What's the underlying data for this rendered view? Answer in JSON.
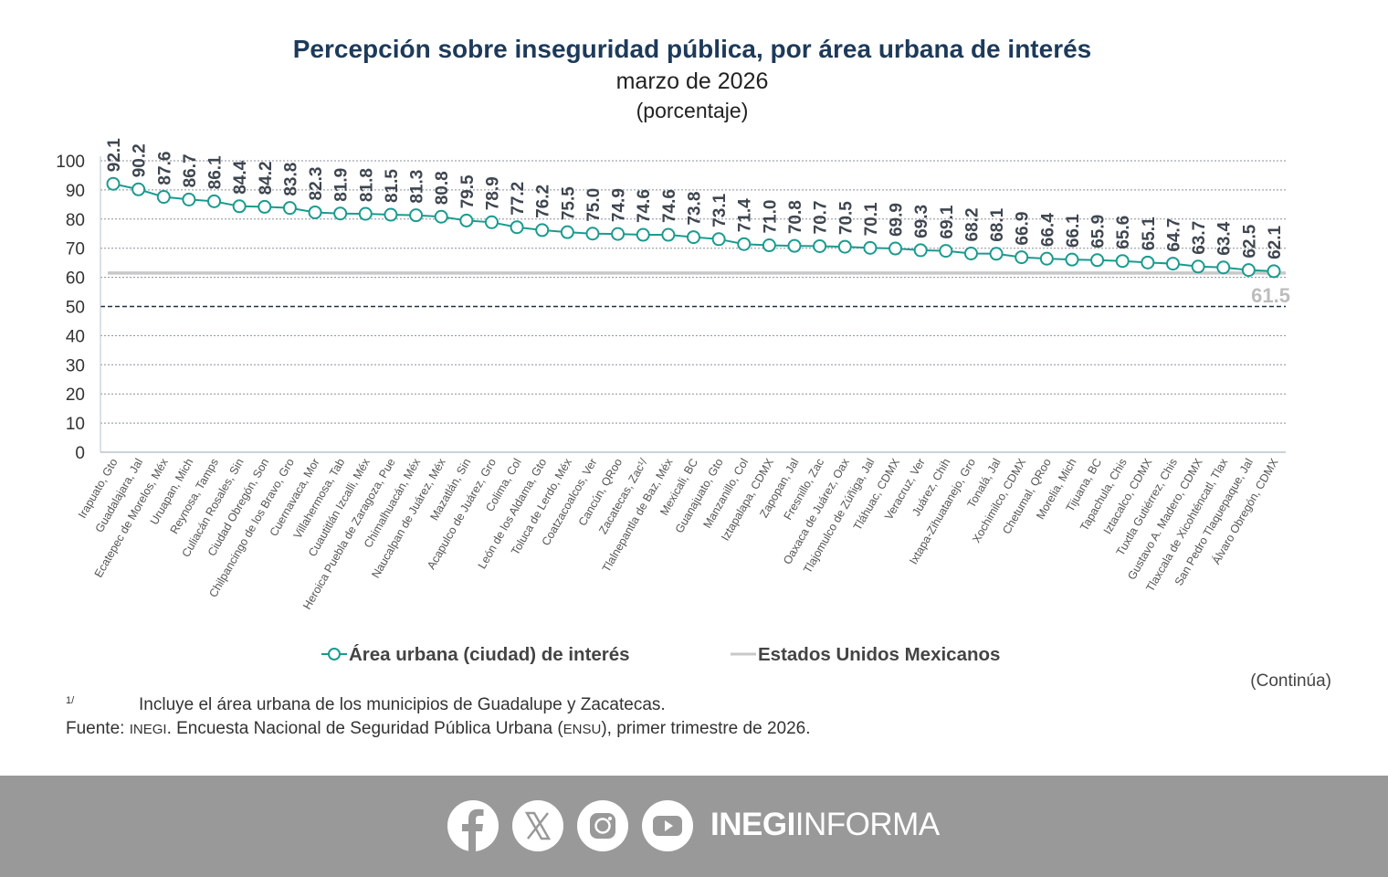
{
  "header": {
    "title": "Percepción sobre inseguridad pública, por área urbana de interés",
    "subtitle": "marzo de 2026",
    "unit": "(porcentaje)"
  },
  "chart_data": {
    "type": "line",
    "title": "Percepción sobre inseguridad pública, por área urbana de interés",
    "subtitle": "marzo de 2026 (porcentaje)",
    "ylim": [
      0,
      100
    ],
    "yticks": [
      "0",
      "10",
      "20",
      "30",
      "40",
      "50",
      "60",
      "70",
      "80",
      "90",
      "100"
    ],
    "grid": true,
    "legend_position": "bottom",
    "reference_line_50": true,
    "categories": [
      "Irapuato, Gto",
      "Guadalajara, Jal",
      "Ecatepec de Morelos, Méx",
      "Uruapan, Mich",
      "Reynosa, Tamps",
      "Culiacán Rosales, Sin",
      "Ciudad Obregón, Son",
      "Chilpancingo de los Bravo, Gro",
      "Cuernavaca, Mor",
      "Villahermosa, Tab",
      "Cuautitlán Izcalli, Méx",
      "Heroica Puebla de Zaragoza, Pue",
      "Chimalhuacán, Méx",
      "Naucalpan de Juárez, Méx",
      "Mazatlán, Sin",
      "Acapulco de Juárez, Gro",
      "Colima, Col",
      "León de los Aldama, Gto",
      "Toluca de Lerdo, Méx",
      "Coatzacoalcos, Ver",
      "Cancún, QRoo",
      "Zacatecas, Zac¹/",
      "Tlalnepantla de Baz, Méx",
      "Mexicali, BC",
      "Guanajuato, Gto",
      "Manzanillo, Col",
      "Iztapalapa, CDMX",
      "Zapopan, Jal",
      "Fresnillo, Zac",
      "Oaxaca de Juárez, Oax",
      "Tlajomulco de Zúñiga, Jal",
      "Tláhuac, CDMX",
      "Veracruz, Ver",
      "Juárez, Chih",
      "Ixtapa-Zihuatanejo, Gro",
      "Tonalá, Jal",
      "Xochimilco, CDMX",
      "Chetumal, QRoo",
      "Morelia, Mich",
      "Tijuana, BC",
      "Tapachula, Chis",
      "Iztacalco, CDMX",
      "Tuxtla Gutiérrez, Chis",
      "Gustavo A. Madero, CDMX",
      "Tlaxcala de Xicohténcatl, Tlax",
      "San Pedro Tlaquepaque, Jal",
      "Álvaro Obregón, CDMX"
    ],
    "series": [
      {
        "name": "Área urbana (ciudad) de interés",
        "color": "#1a9b8f",
        "values": [
          92.1,
          90.2,
          87.6,
          86.7,
          86.1,
          84.4,
          84.2,
          83.8,
          82.3,
          81.9,
          81.8,
          81.5,
          81.3,
          80.8,
          79.5,
          78.9,
          77.2,
          76.2,
          75.5,
          75.0,
          74.9,
          74.6,
          74.6,
          73.8,
          73.1,
          71.4,
          71.0,
          70.8,
          70.7,
          70.5,
          70.1,
          69.9,
          69.3,
          69.1,
          68.2,
          68.1,
          66.9,
          66.4,
          66.1,
          65.9,
          65.6,
          65.1,
          64.7,
          63.7,
          63.4,
          62.5,
          62.1
        ],
        "labels": [
          "92.1",
          "90.2",
          "87.6",
          "86.7",
          "86.1",
          "84.4",
          "84.2",
          "83.8",
          "82.3",
          "81.9",
          "81.8",
          "81.5",
          "81.3",
          "80.8",
          "79.5",
          "78.9",
          "77.2",
          "76.2",
          "75.5",
          "75.0",
          "74.9",
          "74.6",
          "74.6",
          "73.8",
          "73.1",
          "71.4",
          "71.0",
          "70.8",
          "70.7",
          "70.5",
          "70.1",
          "69.9",
          "69.3",
          "69.1",
          "68.2",
          "68.1",
          "66.9",
          "66.4",
          "66.1",
          "65.9",
          "65.6",
          "65.1",
          "64.7",
          "63.7",
          "63.4",
          "62.5",
          "62.1"
        ]
      },
      {
        "name": "Estados Unidos Mexicanos",
        "color": "#c8c8c8",
        "value": 61.5,
        "label": "61.5"
      }
    ]
  },
  "notes": {
    "continua": "(Continúa)",
    "footnote_mark": "1/",
    "footnote": "Incluye el área urbana de los municipios de Guadalupe y Zacatecas.",
    "source_prefix": "Fuente: ",
    "source_inegi": "INEGI",
    "source_mid": ". Encuesta Nacional de Seguridad Pública Urbana (",
    "source_ensu": "ENSU",
    "source_end": "), primer trimestre de 2026."
  },
  "footer": {
    "background": "#999999",
    "icons": [
      "facebook-icon",
      "x-icon",
      "instagram-icon",
      "youtube-icon"
    ],
    "brand_bold": "INEGI",
    "brand_regular": "INFORMA"
  }
}
